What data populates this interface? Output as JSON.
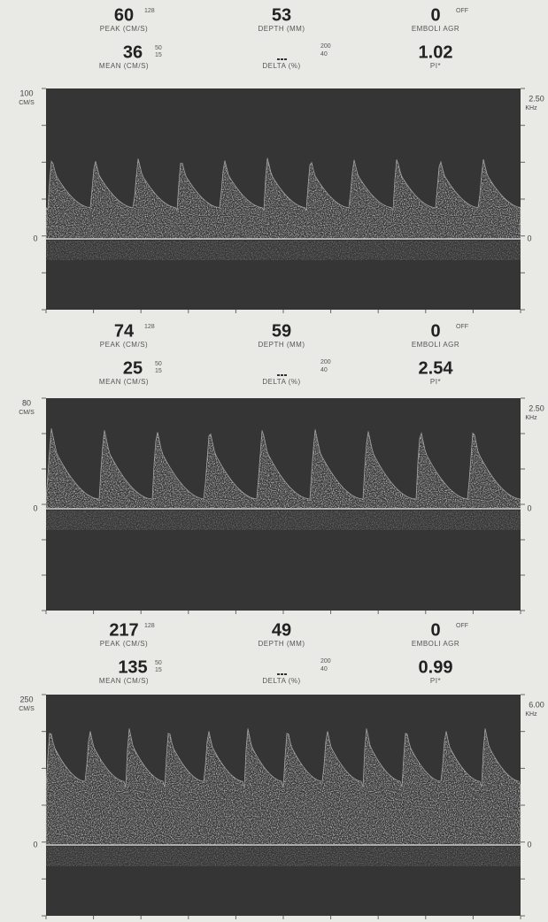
{
  "panels": [
    {
      "readouts": {
        "peak": {
          "value": "60",
          "hi": "128",
          "label": "PEAK (CM/S)"
        },
        "depth": {
          "value": "53",
          "label": "DEPTH (MM)"
        },
        "emboli": {
          "value": "0",
          "flag": "OFF",
          "label": "EMBOLI AGR"
        },
        "mean": {
          "value": "36",
          "hi": "50",
          "lo": "15",
          "label": "MEAN (CM/S)"
        },
        "delta": {
          "hi": "200",
          "lo": "40",
          "label": "DELTA (%)"
        },
        "pi": {
          "value": "1.02",
          "label": "PI*"
        }
      },
      "axis": {
        "left_max": "100",
        "left_unit": "CM/S",
        "left_zero": "0",
        "right_max": "2.50",
        "right_unit": "KHz",
        "right_zero": "0"
      }
    },
    {
      "readouts": {
        "peak": {
          "value": "74",
          "hi": "128",
          "label": "PEAK (CM/S)"
        },
        "depth": {
          "value": "59",
          "label": "DEPTH (MM)"
        },
        "emboli": {
          "value": "0",
          "flag": "OFF",
          "label": "EMBOLI AGR"
        },
        "mean": {
          "value": "25",
          "hi": "50",
          "lo": "15",
          "label": "MEAN (CM/S)"
        },
        "delta": {
          "hi": "200",
          "lo": "40",
          "label": "DELTA (%)"
        },
        "pi": {
          "value": "2.54",
          "label": "PI*"
        }
      },
      "axis": {
        "left_max": "80",
        "left_unit": "CM/S",
        "left_zero": "0",
        "right_max": "2.50",
        "right_unit": "KHz",
        "right_zero": "0"
      }
    },
    {
      "readouts": {
        "peak": {
          "value": "217",
          "hi": "128",
          "label": "PEAK (CM/S)"
        },
        "depth": {
          "value": "49",
          "label": "DEPTH (MM)"
        },
        "emboli": {
          "value": "0",
          "flag": "OFF",
          "label": "EMBOLI AGR"
        },
        "mean": {
          "value": "135",
          "hi": "50",
          "lo": "15",
          "label": "MEAN (CM/S)"
        },
        "delta": {
          "hi": "200",
          "lo": "40",
          "label": "DELTA (%)"
        },
        "pi": {
          "value": "0.99",
          "label": "PI*"
        }
      },
      "axis": {
        "left_max": "250",
        "left_unit": "CM/S",
        "left_zero": "0",
        "right_max": "6.00",
        "right_unit": "KHz",
        "right_zero": "0"
      }
    }
  ]
}
